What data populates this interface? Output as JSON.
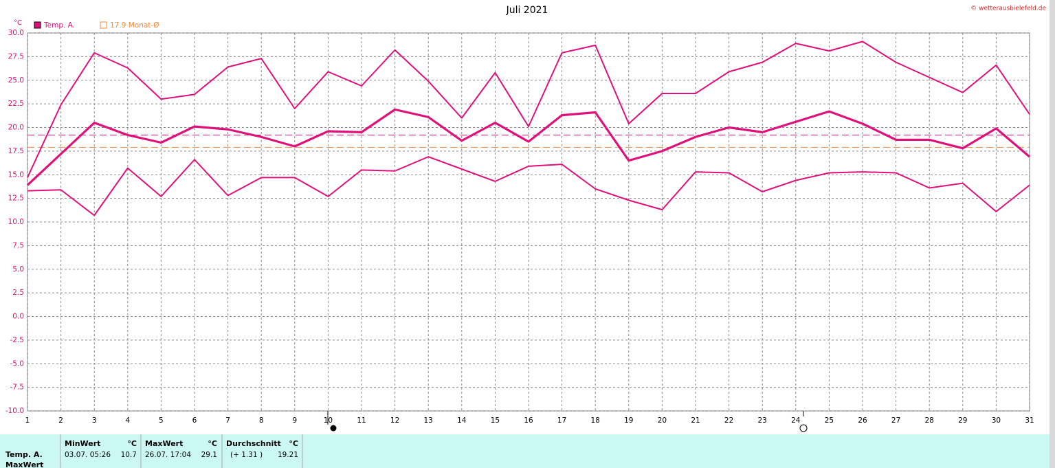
{
  "chart_data": {
    "type": "line",
    "title": "Juli 2021",
    "source": "© wetterausbielefeld.de",
    "y_unit": "°C",
    "legend": [
      {
        "label": "Temp. A.",
        "color": "#e0107a"
      },
      {
        "label": "17.9 Monat-Ø",
        "color": "#f08a3c"
      }
    ],
    "x": [
      1,
      2,
      3,
      4,
      5,
      6,
      7,
      8,
      9,
      10,
      11,
      12,
      13,
      14,
      15,
      16,
      17,
      18,
      19,
      20,
      21,
      22,
      23,
      24,
      25,
      26,
      27,
      28,
      29,
      30,
      31
    ],
    "xlim": [
      1,
      31
    ],
    "xticks": [
      1,
      2,
      3,
      4,
      5,
      6,
      7,
      8,
      9,
      10,
      11,
      12,
      13,
      14,
      15,
      16,
      17,
      18,
      19,
      20,
      21,
      22,
      23,
      24,
      25,
      26,
      27,
      28,
      29,
      30,
      31
    ],
    "ylim": [
      -10,
      30
    ],
    "yticks": [
      {
        "value": -10,
        "label": "-10.0"
      },
      {
        "value": -7.5,
        "label": "-7.5"
      },
      {
        "value": -5,
        "label": "-5.0"
      },
      {
        "value": -2.5,
        "label": "-2.5"
      },
      {
        "value": 0,
        "label": "0.0"
      },
      {
        "value": 2.5,
        "label": "2.5"
      },
      {
        "value": 5,
        "label": "5.0"
      },
      {
        "value": 7.5,
        "label": "7.5"
      },
      {
        "value": 10,
        "label": "10.0"
      },
      {
        "value": 12.5,
        "label": "12.5"
      },
      {
        "value": 15,
        "label": "15.0"
      },
      {
        "value": 17.5,
        "label": "17.5"
      },
      {
        "value": 20,
        "label": "20.0"
      },
      {
        "value": 22.5,
        "label": "22.5"
      },
      {
        "value": 25,
        "label": "25.0"
      },
      {
        "value": 27.5,
        "label": "27.5"
      },
      {
        "value": 30,
        "label": "30.0"
      }
    ],
    "grid": true,
    "series": [
      {
        "color": "#e0107a",
        "values": [
          14.7,
          22.4,
          27.9,
          26.3,
          23.0,
          23.5,
          26.4,
          27.3,
          22.0,
          25.9,
          24.4,
          28.2,
          24.9,
          21.0,
          25.8,
          20.1,
          27.9,
          28.7,
          20.4,
          23.6,
          23.6,
          25.9,
          26.9,
          28.9,
          28.1,
          29.1,
          26.9,
          25.3,
          23.7,
          26.6,
          21.4
        ]
      },
      {
        "color": "#e0107a",
        "values": [
          13.9,
          17.2,
          20.5,
          19.2,
          18.4,
          20.1,
          19.8,
          19.0,
          18.0,
          19.6,
          19.5,
          21.9,
          21.1,
          18.6,
          20.5,
          18.5,
          21.3,
          21.6,
          16.5,
          17.5,
          19.0,
          20.0,
          19.5,
          20.6,
          21.7,
          20.4,
          18.7,
          18.7,
          17.8,
          19.9,
          16.9
        ]
      },
      {
        "color": "#e0107a",
        "values": [
          13.3,
          13.4,
          10.7,
          15.7,
          12.7,
          16.6,
          12.8,
          14.7,
          14.7,
          12.7,
          15.5,
          15.4,
          16.9,
          15.6,
          14.3,
          15.9,
          16.1,
          13.5,
          12.3,
          11.3,
          15.3,
          15.2,
          13.2,
          14.4,
          15.2,
          15.3,
          15.2,
          13.6,
          14.1,
          11.1,
          13.9
        ]
      }
    ],
    "reference_lines": [
      {
        "value": 19.2,
        "color": "#e0107a"
      },
      {
        "value": 17.9,
        "color": "#f08a3c"
      }
    ]
  },
  "stats": {
    "row_labels": [
      "Temp. A.",
      "MaxWert"
    ],
    "columns": [
      {
        "header": "MinWert",
        "unit": "°C",
        "detail": "03.07.  05:26",
        "value": 10.7
      },
      {
        "header": "MaxWert",
        "unit": "°C",
        "detail": "26.07.  17:04",
        "value": 29.1
      },
      {
        "header": "Durchschnitt",
        "unit": "°C",
        "detail": "(+ 1.31 )",
        "value": 19.21
      }
    ]
  }
}
